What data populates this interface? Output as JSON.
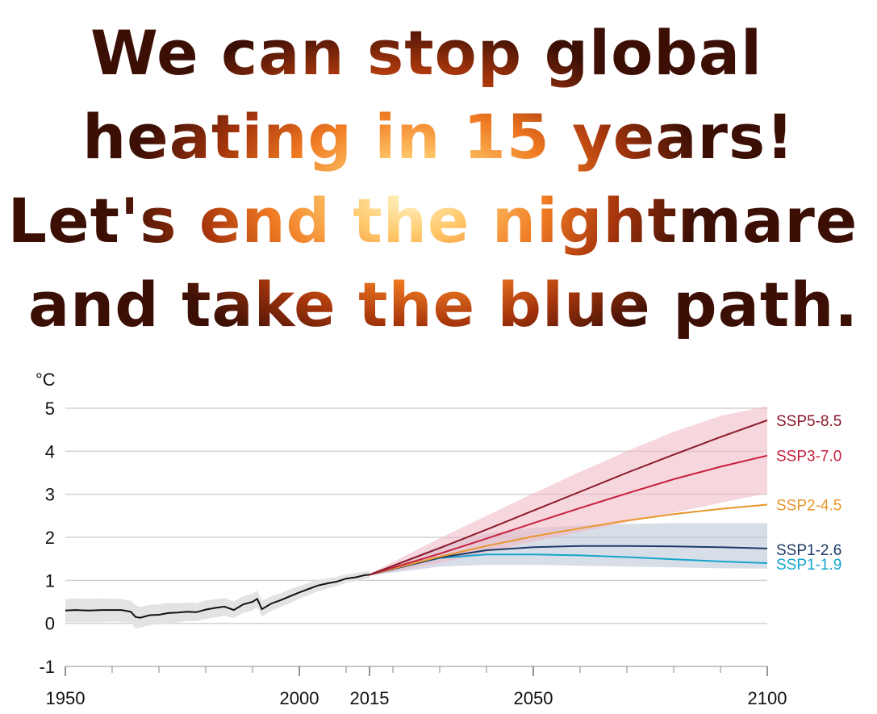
{
  "headline": {
    "line1": "We can stop global",
    "line2": "heating in 15 years!",
    "line3": "Let's end the nightmare",
    "line4": "and take the blue path."
  },
  "chart_data": {
    "type": "line",
    "ylabel": "°C",
    "ylim": [
      -1,
      5
    ],
    "xlim": [
      1950,
      2100
    ],
    "y_ticks": [
      5,
      4,
      3,
      2,
      1,
      0,
      -1
    ],
    "x_tick_labels": [
      1950,
      2000,
      2015,
      2050,
      2100
    ],
    "x_minor_ticks": [
      1960,
      1970,
      1980,
      1990,
      2010,
      2020,
      2030,
      2040,
      2060,
      2070,
      2080,
      2090
    ],
    "grid": true,
    "historical": {
      "x": [
        1950,
        1952,
        1955,
        1958,
        1960,
        1962,
        1964,
        1965,
        1966,
        1968,
        1970,
        1972,
        1974,
        1976,
        1978,
        1980,
        1982,
        1984,
        1986,
        1988,
        1990,
        1991,
        1992,
        1994,
        1996,
        1998,
        2000,
        2002,
        2004,
        2006,
        2008,
        2010,
        2012,
        2014,
        2015
      ],
      "y": [
        0.3,
        0.31,
        0.3,
        0.31,
        0.31,
        0.31,
        0.27,
        0.15,
        0.13,
        0.19,
        0.2,
        0.24,
        0.25,
        0.27,
        0.26,
        0.32,
        0.36,
        0.39,
        0.31,
        0.44,
        0.5,
        0.57,
        0.33,
        0.46,
        0.54,
        0.63,
        0.72,
        0.8,
        0.88,
        0.93,
        0.97,
        1.04,
        1.07,
        1.12,
        1.13
      ],
      "band_low": [
        0.02,
        0.03,
        0.02,
        0.03,
        0.04,
        0.03,
        0.02,
        -0.12,
        -0.1,
        -0.04,
        -0.02,
        0.0,
        0.03,
        0.05,
        0.05,
        0.1,
        0.14,
        0.18,
        0.12,
        0.24,
        0.3,
        0.37,
        0.16,
        0.29,
        0.38,
        0.47,
        0.57,
        0.66,
        0.75,
        0.81,
        0.86,
        0.94,
        0.98,
        1.03,
        1.05
      ],
      "band_high": [
        0.56,
        0.58,
        0.57,
        0.58,
        0.57,
        0.57,
        0.52,
        0.42,
        0.38,
        0.43,
        0.44,
        0.48,
        0.47,
        0.49,
        0.47,
        0.53,
        0.56,
        0.59,
        0.51,
        0.63,
        0.69,
        0.76,
        0.52,
        0.63,
        0.7,
        0.79,
        0.87,
        0.94,
        1.01,
        1.05,
        1.08,
        1.14,
        1.17,
        1.21,
        1.22
      ]
    },
    "series": [
      {
        "name": "SSP5-8.5",
        "color": "#8b1a2b",
        "x": [
          2015,
          2030,
          2040,
          2050,
          2060,
          2070,
          2080,
          2090,
          2100
        ],
        "y": [
          1.13,
          1.75,
          2.18,
          2.62,
          3.06,
          3.5,
          3.92,
          4.33,
          4.72
        ]
      },
      {
        "name": "SSP3-7.0",
        "color": "#c8203d",
        "x": [
          2015,
          2030,
          2040,
          2050,
          2060,
          2070,
          2080,
          2090,
          2100
        ],
        "y": [
          1.13,
          1.62,
          1.97,
          2.33,
          2.68,
          3.02,
          3.35,
          3.64,
          3.9
        ]
      },
      {
        "name": "SSP2-4.5",
        "color": "#e8962c",
        "x": [
          2015,
          2030,
          2040,
          2050,
          2060,
          2070,
          2080,
          2090,
          2100
        ],
        "y": [
          1.13,
          1.55,
          1.8,
          2.02,
          2.21,
          2.39,
          2.54,
          2.66,
          2.76
        ]
      },
      {
        "name": "SSP1-2.6",
        "color": "#1d3a66",
        "x": [
          2015,
          2030,
          2040,
          2050,
          2060,
          2070,
          2080,
          2090,
          2100
        ],
        "y": [
          1.13,
          1.53,
          1.7,
          1.77,
          1.8,
          1.8,
          1.79,
          1.77,
          1.74
        ]
      },
      {
        "name": "SSP1-1.9",
        "color": "#16a5cc",
        "x": [
          2015,
          2030,
          2040,
          2050,
          2060,
          2070,
          2080,
          2090,
          2100
        ],
        "y": [
          1.13,
          1.52,
          1.6,
          1.6,
          1.58,
          1.54,
          1.49,
          1.44,
          1.4
        ]
      }
    ],
    "bands": [
      {
        "name": "SSP1-2.6",
        "color": "#b8c2d6",
        "x": [
          2015,
          2030,
          2040,
          2050,
          2060,
          2070,
          2080,
          2090,
          2100
        ],
        "low": [
          1.11,
          1.32,
          1.36,
          1.36,
          1.34,
          1.32,
          1.3,
          1.28,
          1.27
        ],
        "high": [
          1.15,
          1.8,
          2.1,
          2.22,
          2.28,
          2.31,
          2.33,
          2.33,
          2.33
        ]
      },
      {
        "name": "SSP3-7.0",
        "color": "#f0b6c3",
        "x": [
          2015,
          2030,
          2040,
          2050,
          2060,
          2070,
          2080,
          2090,
          2100
        ],
        "low": [
          1.11,
          1.4,
          1.65,
          1.9,
          2.12,
          2.35,
          2.57,
          2.8,
          3.02
        ],
        "high": [
          1.15,
          1.98,
          2.5,
          3.02,
          3.52,
          4.0,
          4.45,
          4.82,
          5.05
        ]
      }
    ]
  }
}
